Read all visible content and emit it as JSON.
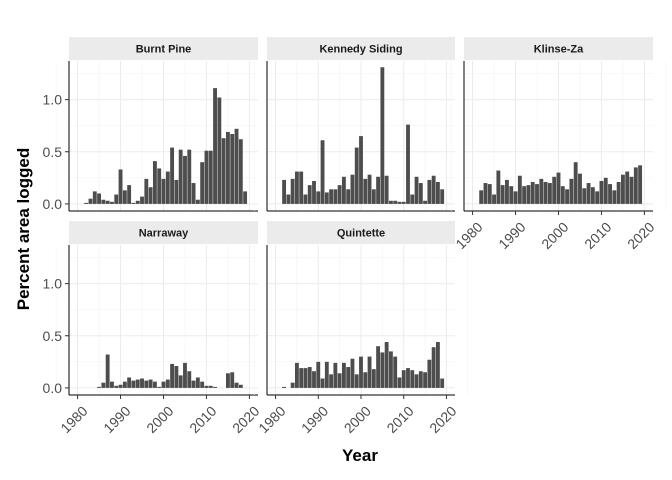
{
  "chart_data": {
    "type": "bar",
    "xlabel": "Year",
    "ylabel": "Percent area logged",
    "xlim": [
      1980,
      2020
    ],
    "ylim": [
      0,
      1.35
    ],
    "xticks": [
      1980,
      1990,
      2000,
      2010,
      2020
    ],
    "yticks": [
      0.0,
      0.5,
      1.0
    ],
    "ytick_labels": [
      "0.0",
      "0.5",
      "1.0"
    ],
    "grid": true,
    "bar_color": "#4d4d4d",
    "strip_color": "#ebebeb",
    "facets": [
      {
        "name": "Burnt Pine",
        "x": [
          1982,
          1983,
          1984,
          1985,
          1986,
          1987,
          1988,
          1989,
          1990,
          1991,
          1992,
          1993,
          1994,
          1995,
          1996,
          1997,
          1998,
          1999,
          2000,
          2001,
          2002,
          2003,
          2004,
          2005,
          2006,
          2007,
          2008,
          2009,
          2010,
          2011,
          2012,
          2013,
          2014,
          2015,
          2016,
          2017,
          2018,
          2019
        ],
        "values": [
          0.01,
          0.05,
          0.12,
          0.1,
          0.04,
          0.03,
          0.02,
          0.09,
          0.33,
          0.13,
          0.18,
          0.01,
          0.03,
          0.07,
          0.24,
          0.16,
          0.41,
          0.34,
          0.24,
          0.31,
          0.54,
          0.23,
          0.52,
          0.46,
          0.52,
          0.2,
          0.04,
          0.4,
          0.51,
          0.51,
          1.11,
          1.02,
          0.63,
          0.69,
          0.67,
          0.72,
          0.62,
          0.12
        ]
      },
      {
        "name": "Kennedy Siding",
        "x": [
          1982,
          1983,
          1984,
          1985,
          1986,
          1987,
          1988,
          1989,
          1990,
          1991,
          1992,
          1993,
          1994,
          1995,
          1996,
          1997,
          1998,
          1999,
          2000,
          2001,
          2002,
          2003,
          2004,
          2005,
          2006,
          2007,
          2008,
          2009,
          2010,
          2011,
          2012,
          2013,
          2014,
          2015,
          2016,
          2017,
          2018,
          2019
        ],
        "values": [
          0.23,
          0.09,
          0.24,
          0.31,
          0.31,
          0.09,
          0.18,
          0.22,
          0.12,
          0.61,
          0.11,
          0.14,
          0.14,
          0.18,
          0.26,
          0.14,
          0.28,
          0.54,
          0.65,
          0.24,
          0.28,
          0.14,
          0.26,
          1.31,
          0.27,
          0.03,
          0.03,
          0.02,
          0.02,
          0.76,
          0.09,
          0.26,
          0.2,
          0.03,
          0.23,
          0.27,
          0.21,
          0.14
        ]
      },
      {
        "name": "Klinse-Za",
        "x": [
          1982,
          1983,
          1984,
          1985,
          1986,
          1987,
          1988,
          1989,
          1990,
          1991,
          1992,
          1993,
          1994,
          1995,
          1996,
          1997,
          1998,
          1999,
          2000,
          2001,
          2002,
          2003,
          2004,
          2005,
          2006,
          2007,
          2008,
          2009,
          2010,
          2011,
          2012,
          2013,
          2014,
          2015,
          2016,
          2017,
          2018,
          2019
        ],
        "values": [
          0.13,
          0.2,
          0.19,
          0.09,
          0.32,
          0.18,
          0.23,
          0.17,
          0.12,
          0.27,
          0.17,
          0.18,
          0.21,
          0.19,
          0.24,
          0.21,
          0.2,
          0.26,
          0.3,
          0.17,
          0.14,
          0.24,
          0.4,
          0.29,
          0.15,
          0.2,
          0.16,
          0.12,
          0.22,
          0.25,
          0.19,
          0.13,
          0.21,
          0.28,
          0.31,
          0.26,
          0.35,
          0.37
        ]
      },
      {
        "name": "Narraway",
        "x": [
          1982,
          1983,
          1984,
          1985,
          1986,
          1987,
          1988,
          1989,
          1990,
          1991,
          1992,
          1993,
          1994,
          1995,
          1996,
          1997,
          1998,
          1999,
          2000,
          2001,
          2002,
          2003,
          2004,
          2005,
          2006,
          2007,
          2008,
          2009,
          2010,
          2011,
          2012,
          2013,
          2014,
          2015,
          2016,
          2017,
          2018,
          2019
        ],
        "values": [
          0,
          0,
          0,
          0.01,
          0.05,
          0.32,
          0.06,
          0.02,
          0.03,
          0.06,
          0.1,
          0.07,
          0.08,
          0.09,
          0.07,
          0.08,
          0.06,
          0.01,
          0.06,
          0.08,
          0.23,
          0.21,
          0.12,
          0.24,
          0.16,
          0.07,
          0.1,
          0.06,
          0.02,
          0.02,
          0.01,
          0,
          0,
          0.14,
          0.15,
          0.05,
          0.03,
          0
        ]
      },
      {
        "name": "Quintette",
        "x": [
          1982,
          1983,
          1984,
          1985,
          1986,
          1987,
          1988,
          1989,
          1990,
          1991,
          1992,
          1993,
          1994,
          1995,
          1996,
          1997,
          1998,
          1999,
          2000,
          2001,
          2002,
          2003,
          2004,
          2005,
          2006,
          2007,
          2008,
          2009,
          2010,
          2011,
          2012,
          2013,
          2014,
          2015,
          2016,
          2017,
          2018,
          2019
        ],
        "values": [
          0.01,
          0,
          0.05,
          0.24,
          0.19,
          0.19,
          0.2,
          0.16,
          0.25,
          0.09,
          0.25,
          0.13,
          0.24,
          0.14,
          0.24,
          0.2,
          0.28,
          0.13,
          0.3,
          0.15,
          0.3,
          0.18,
          0.4,
          0.34,
          0.44,
          0.35,
          0.3,
          0.1,
          0.17,
          0.19,
          0.17,
          0.13,
          0.16,
          0.15,
          0.27,
          0.39,
          0.44,
          0.09
        ]
      }
    ]
  }
}
